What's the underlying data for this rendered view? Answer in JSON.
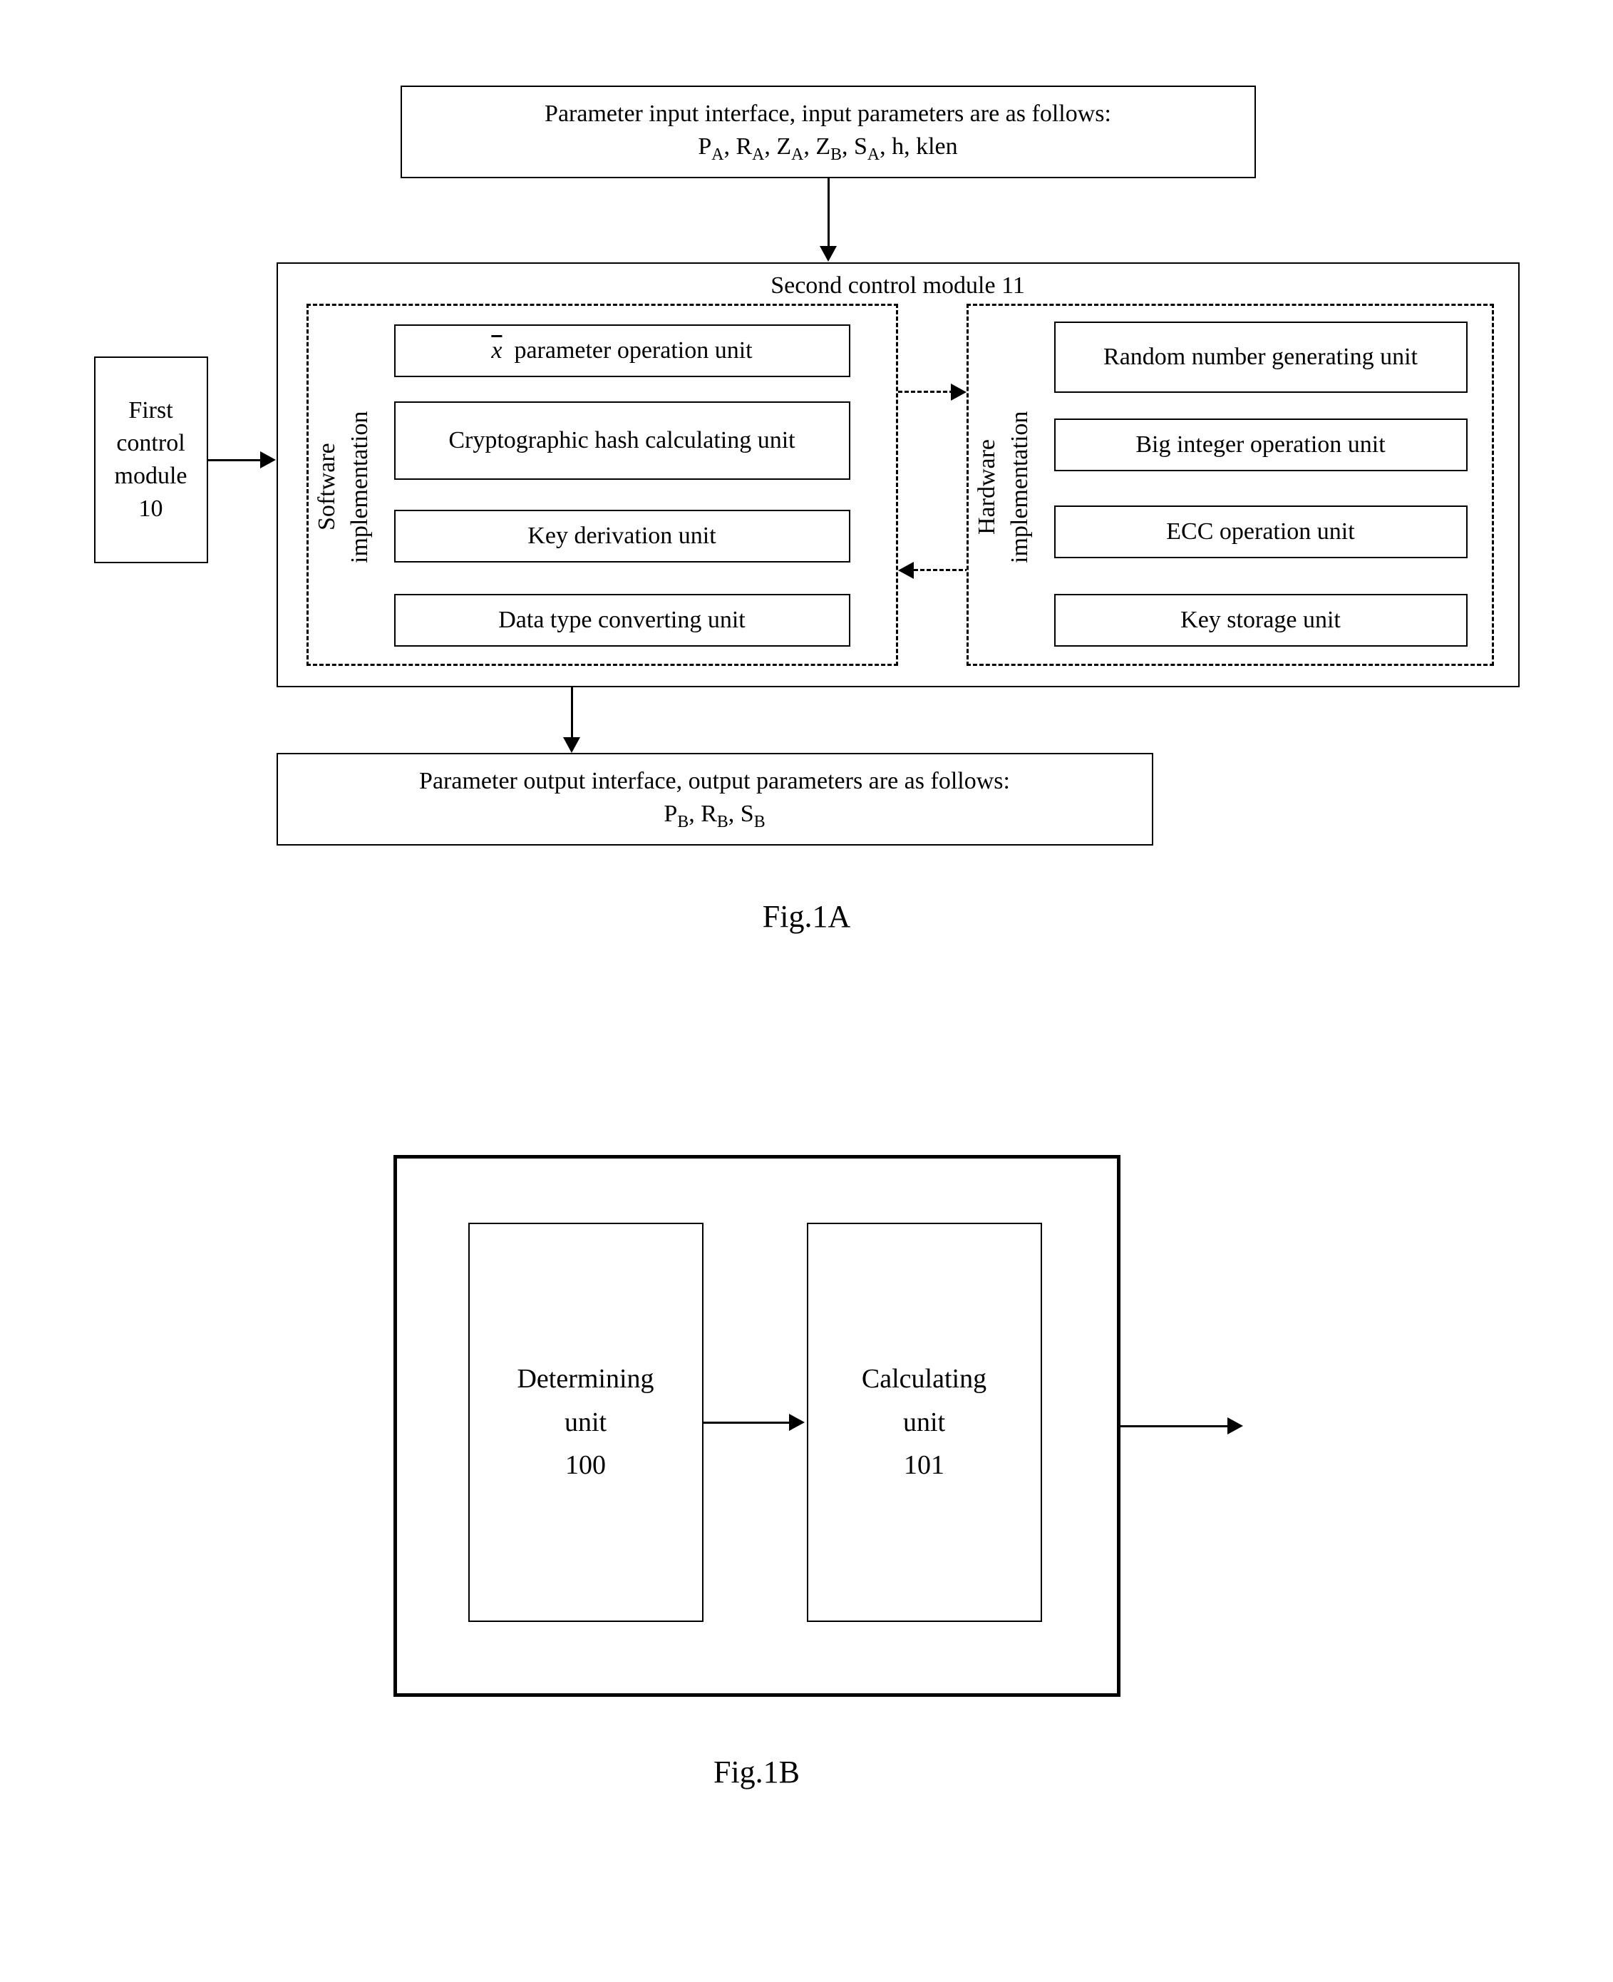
{
  "fig1a": {
    "caption": "Fig.1A",
    "input_box": {
      "line1": "Parameter input interface, input parameters are as follows:",
      "params_html": "P<sub>A</sub>, R<sub>A</sub>, Z<sub>A</sub>, Z<sub>B</sub>, S<sub>A</sub>, h, klen"
    },
    "first_control": {
      "line1": "First",
      "line2": "control",
      "line3": "module",
      "num": "10"
    },
    "second_control_title": "Second control module 11",
    "sw_label": "Software\nimplementation",
    "hw_label": "Hardware\nimplementation",
    "sw_units": {
      "u1_html": "<span style=\"text-decoration:overline;font-style:italic;\">x</span>&nbsp; parameter operation unit",
      "u2": "Cryptographic hash calculating unit",
      "u3": "Key derivation unit",
      "u4": "Data type converting unit"
    },
    "hw_units": {
      "u1": "Random number generating unit",
      "u2": "Big integer operation unit",
      "u3": "ECC operation unit",
      "u4": "Key storage unit"
    },
    "output_box": {
      "line1": "Parameter output interface, output parameters are as follows:",
      "params_html": "P<sub>B</sub>, R<sub>B</sub>, S<sub>B</sub>"
    }
  },
  "fig1b": {
    "caption": "Fig.1B",
    "determining": {
      "line1": "Determining",
      "line2": "unit",
      "num": "100"
    },
    "calculating": {
      "line1": "Calculating",
      "line2": "unit",
      "num": "101"
    }
  },
  "style": {
    "background": "#ffffff",
    "border_color": "#000000",
    "text_color": "#000000",
    "font_family": "Times New Roman",
    "fig1a_width": 2000,
    "fig1b_width": 1100,
    "label_fontsize": 34,
    "caption_fontsize": 44,
    "line_width": 3,
    "dash_width": 3
  }
}
